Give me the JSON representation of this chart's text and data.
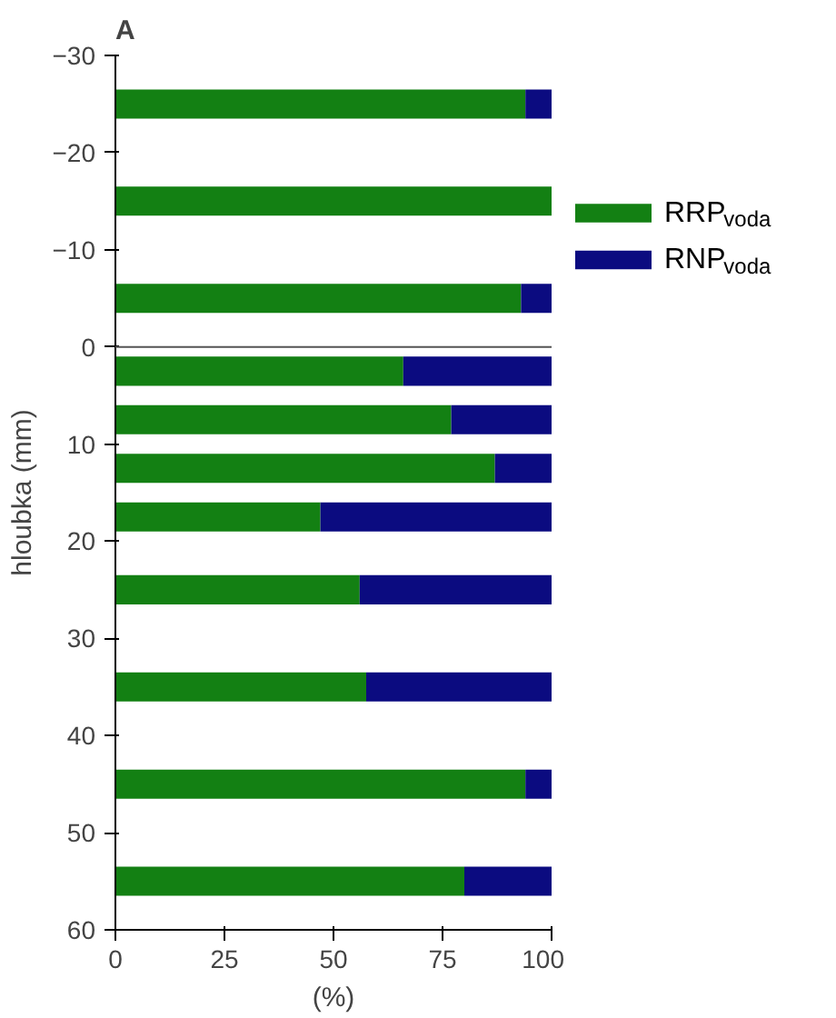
{
  "chart_data": {
    "type": "bar",
    "orientation": "horizontal",
    "stacked": true,
    "title": "A",
    "xlabel": "(%)",
    "ylabel": "hloubka (mm)",
    "x": [
      -25,
      -15,
      -5,
      2.5,
      7.5,
      12.5,
      17.5,
      25,
      35,
      45,
      55
    ],
    "series": [
      {
        "name": "RRP$_{voda}$",
        "color": "#138013",
        "values": [
          94,
          100,
          93,
          66,
          77,
          87,
          47,
          56,
          57.5,
          94,
          80
        ]
      },
      {
        "name": "RNP$_{voda}$",
        "color": "#0b0b80",
        "values": [
          6,
          0,
          7,
          34,
          23,
          13,
          53,
          44,
          42.5,
          6,
          20
        ]
      }
    ],
    "xlim": [
      0,
      100
    ],
    "xticks": [
      0,
      25,
      50,
      75,
      100
    ],
    "ylim": [
      60,
      -30
    ],
    "yticks": [
      -30,
      -20,
      -10,
      0,
      10,
      20,
      30,
      40,
      50,
      60
    ],
    "ref_lines": [
      {
        "axis": "y",
        "value": 0,
        "label": null,
        "color": "#555555"
      }
    ],
    "grid": false,
    "legend": "right"
  }
}
